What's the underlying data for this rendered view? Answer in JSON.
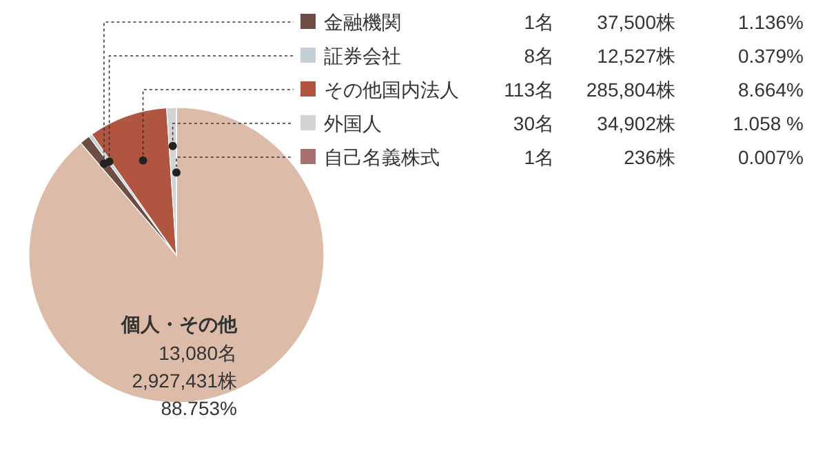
{
  "chart_data": {
    "type": "pie",
    "legend": "right",
    "categories": [
      "金融機関",
      "証券会社",
      "その他国内法人",
      "外国人",
      "自己名義株式",
      "個人・その他"
    ],
    "values": [
      1.136,
      0.379,
      8.664,
      1.058,
      0.007,
      88.753
    ],
    "colors": [
      "#6b4d45",
      "#c5d0d6",
      "#b0553f",
      "#d3d3d3",
      "#a8716f",
      "#dcbba8"
    ],
    "value_labels": [
      "1.136%",
      "0.379%",
      "8.664%",
      "1.058 %",
      "0.007%",
      "88.753%"
    ],
    "annotations": [
      "1名",
      "37,500株",
      "8名",
      "12,527株",
      "113名",
      "285,804株",
      "30名",
      "34,902株",
      "1名",
      "236株",
      "13,080名",
      "2,927,431株"
    ]
  }
}
